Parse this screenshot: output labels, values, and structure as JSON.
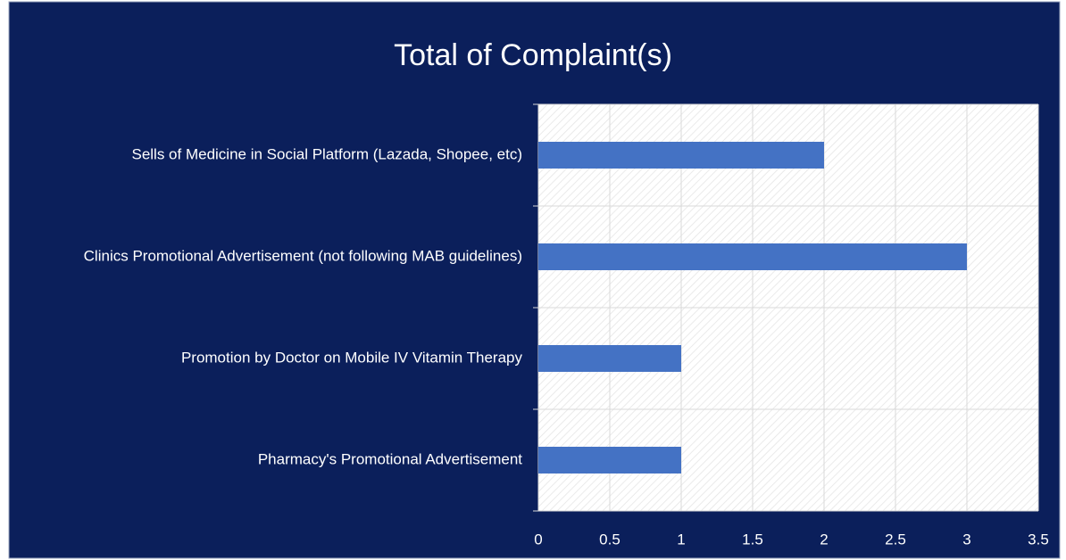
{
  "chart_data": {
    "type": "bar",
    "orientation": "horizontal",
    "title": "Total of Complaint(s)",
    "categories": [
      "Sells of Medicine in Social Platform (Lazada, Shopee, etc)",
      "Clinics Promotional Advertisement (not following MAB guidelines)",
      "Promotion by Doctor on Mobile IV Vitamin Therapy",
      "Pharmacy's Promotional Advertisement"
    ],
    "values": [
      2,
      3,
      1,
      1
    ],
    "color": "#4472c4",
    "xlim": [
      0,
      3.5
    ],
    "xticks": [
      0,
      0.5,
      1,
      1.5,
      2,
      2.5,
      3,
      3.5
    ],
    "grid": true
  }
}
